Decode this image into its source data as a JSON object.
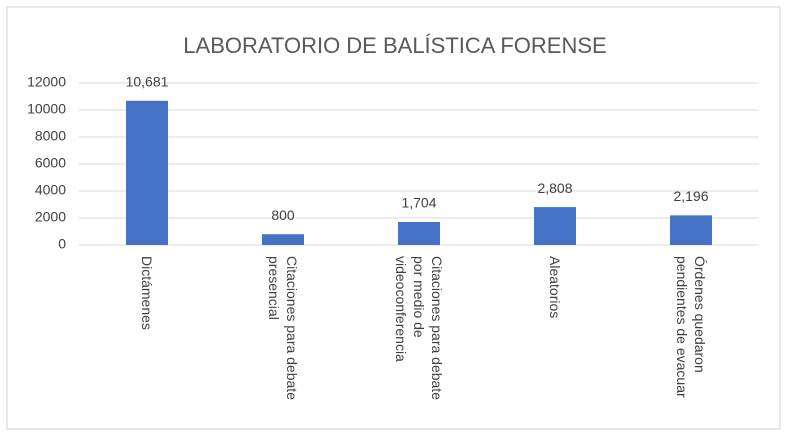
{
  "chart_data": {
    "type": "bar",
    "title": "LABORATORIO DE BALÍSTICA FORENSE",
    "categories": [
      "Dictámenes",
      "Citaciones para debate presencial",
      "Citaciones para debate por medio de videoconferencia",
      "Aleatorios",
      "Órdenes quedaron pendientes de evacuar"
    ],
    "values": [
      10681,
      800,
      1704,
      2808,
      2196
    ],
    "value_labels": [
      "10,681",
      "800",
      "1,704",
      "2,808",
      "2,196"
    ],
    "color": "#4472c4",
    "ylim": [
      0,
      12000
    ],
    "yticks": [
      0,
      2000,
      4000,
      6000,
      8000,
      10000,
      12000
    ],
    "grid": true
  }
}
